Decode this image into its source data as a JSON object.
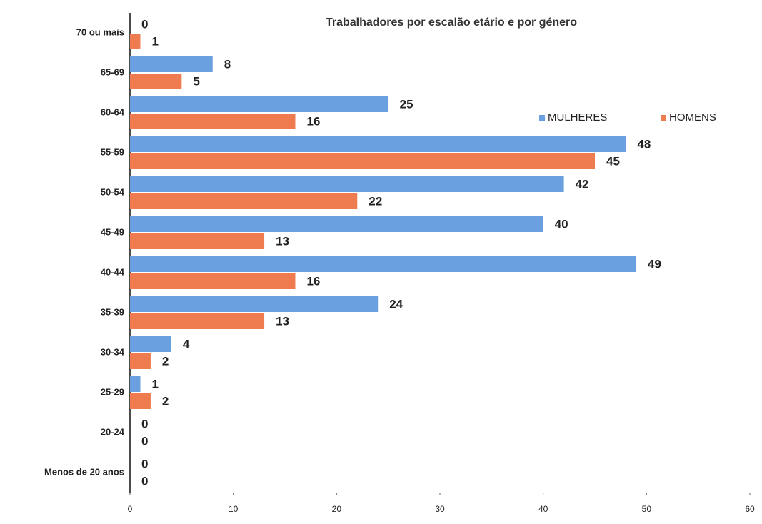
{
  "chart_data": {
    "type": "hbar",
    "title": "Trabalhadores por escalão etário e por género",
    "categories": [
      "70 ou mais",
      "65-69",
      "60-64",
      "55-59",
      "50-54",
      "45-49",
      "40-44",
      "35-39",
      "30-34",
      "25-29",
      "20-24",
      "Menos de 20 anos"
    ],
    "series": [
      {
        "name": "MULHERES",
        "color": "#6a9fe0",
        "values": [
          0,
          8,
          25,
          48,
          42,
          40,
          49,
          24,
          4,
          1,
          0,
          0
        ]
      },
      {
        "name": "HOMENS",
        "color": "#ee7c50",
        "values": [
          1,
          5,
          16,
          45,
          22,
          13,
          16,
          13,
          2,
          2,
          0,
          0
        ]
      }
    ],
    "xlim": [
      0,
      60
    ],
    "xticks": [
      0,
      10,
      20,
      30,
      40,
      50,
      60
    ],
    "legend": "right",
    "grid": false
  }
}
